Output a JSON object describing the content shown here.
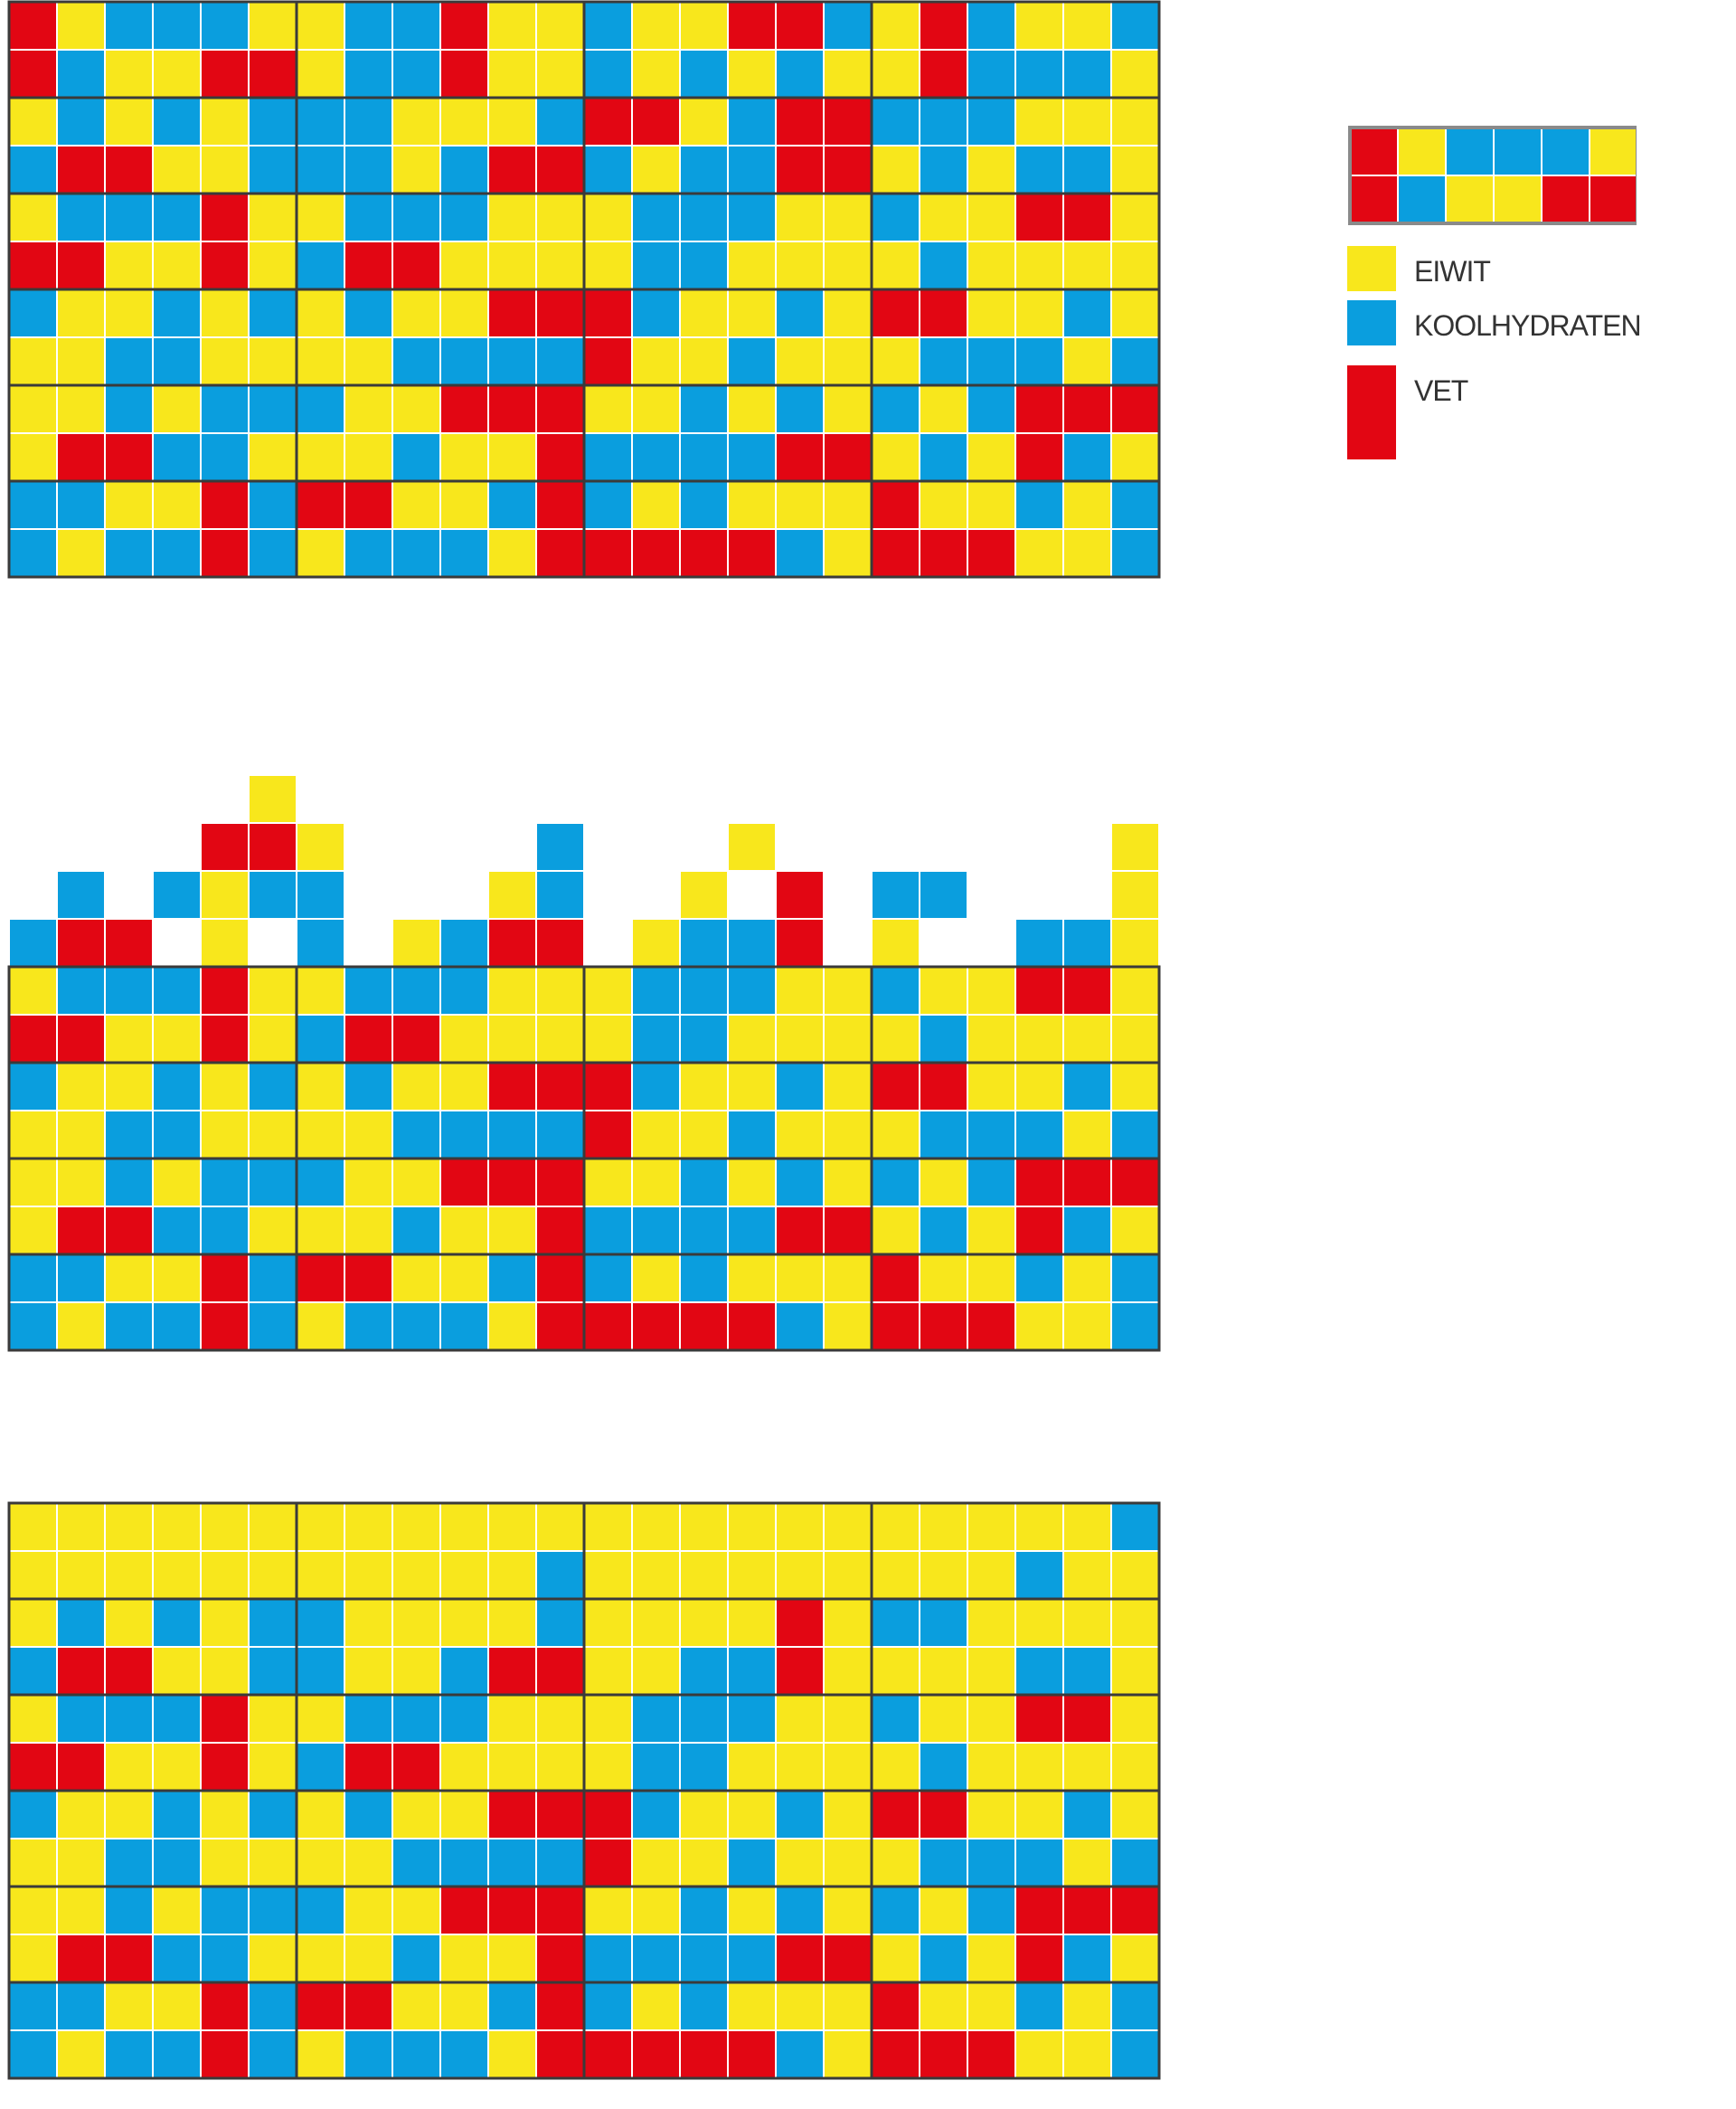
{
  "colors": {
    "yellow": "#F8E71C",
    "blue": "#0A9EDE",
    "red": "#E20613"
  },
  "legend": {
    "example_block_icon": "mixed-block",
    "items": [
      {
        "label": "EIWIT",
        "color_key": "yellow"
      },
      {
        "label": "KOOLHYDRATEN",
        "color_key": "blue"
      },
      {
        "label": "VET",
        "color_key": "red"
      }
    ]
  },
  "grids": [
    {
      "name": "grid-top",
      "rows": [
        "RYBBBY YBBRYY BYYRRB YRBYYB",
        "RBYYRR YBBRYY BYBYBY YRBBBY",
        "YBYBYB BBYYYB RRYBRR BBBYYY",
        "BRRYYB BBYBRR BYBBRR YBYBBY",
        "YBBBRY YBBBYY YBBBYY BYYRRY",
        "RRYYRY BRRYYY YBBYYY YBYYYY",
        "BYYBYB YBYYRR RBYYBY RRYYBY",
        "YYBBYY YYBBBB RYYBYY YBBBYB",
        "YYBYBB BYYRRR YYBYBY BYBRRR",
        "YRRBBY YYBYYR BBBBRR YBYRBY",
        "BBYYRB RRYYBR BYBYYY RYYBYB",
        "BYBBRB YBBBYR RRRRBY RRRYYB"
      ]
    },
    {
      "name": "grid-middle",
      "rows": [
        "YBBBRY YBBBYY YBBBYY BYYRRY",
        "RRYYRY BRRYYY YBBYYY YBYYYY",
        "BYYBYB YBYYRR RBYYBY RRYYBY",
        "YYBBYY YYBBBB RYYBYY YBBBYB",
        "YYBYBB BYYRRR YYBYBY BYBRRR",
        "YRRBBY YYBYYR BBBBRR YBYRBY",
        "BBYYRB RRYYBR BYBYYY RYYBYB",
        "BYBBRB YBBBYR RRRRBY RRRYYB"
      ],
      "overflow": [
        ".....Y ...... ...... ......",
        "....RR Y....B ...Y.. .....Y",
        ".B.BYB B...YB ..Y.R. BB...Y",
        "BRR.Y. B.YBRR .YBBR. Y..BBY"
      ]
    },
    {
      "name": "grid-bottom",
      "rows": [
        "YYYYYY YYYYYY YYYYYY YYYYYB",
        "YYYYYY YYYYYB YYYYYY YYYBYY",
        "YBYBYB BYYYYB YYYYRY BBYYYY",
        "BRRYYB BYYBRR YYBBRY YYYBBY",
        "YBBBRY YBBBYY YBBBYY BYYRRY",
        "RRYYRY BRRYYY YBBYYY YBYYYY",
        "BYYBYB YBYYRR RBYYBY RRYYBY",
        "YYBBYY YYBBBB RYYBYY YBBBYB",
        "YYBYBB BYYRRR YYBYBY BYBRRR",
        "YRRBBY YYBYYR BBBBRR YBYRBY",
        "BBYYRB RRYYBR BYBYYY RYYBYB",
        "BYBBRB YBBBYR RRRRBY RRRYYB"
      ]
    }
  ]
}
